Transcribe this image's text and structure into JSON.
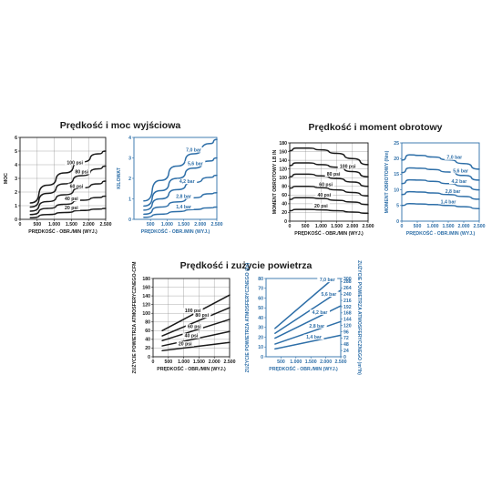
{
  "sections": {
    "speed_power": "Prędkość i moc wyjściowa",
    "speed_torque": "Prędkość i moment obrotowy",
    "speed_air": "Prędkość i zużycie powietrza"
  },
  "colors": {
    "black": "#1a1a1a",
    "blue": "#2e6fa8"
  },
  "chart_data": [
    {
      "id": "power_psi",
      "type": "line",
      "color": "black",
      "xlabel": "PRĘDKOŚĆ - OBR./MIN (WYJ.)",
      "ylabel": "MOC",
      "xlim": [
        0,
        2500
      ],
      "ylim": [
        0,
        6
      ],
      "grid": true,
      "xticks": [
        0,
        500,
        1000,
        1500,
        2000,
        2500
      ],
      "xtick_labels": [
        "0",
        "500",
        "1.000",
        "1.500",
        "2.000",
        "2.500"
      ],
      "yticks": [
        0,
        1,
        2,
        3,
        4,
        5,
        6
      ],
      "ytick_labels": [
        "0",
        "1",
        "2",
        "3",
        "4",
        "5",
        "6"
      ],
      "label_pos": "above",
      "series": [
        {
          "name": "100 psi",
          "x": [
            300,
            800,
            1300,
            1800,
            2300,
            2500
          ],
          "y": [
            1.2,
            2.5,
            3.4,
            4.2,
            4.8,
            5.0
          ],
          "label_at": 1600
        },
        {
          "name": "80 psi",
          "x": [
            300,
            800,
            1300,
            1800,
            2300,
            2500
          ],
          "y": [
            0.9,
            1.9,
            2.6,
            3.2,
            3.7,
            3.9
          ],
          "label_at": 1800
        },
        {
          "name": "60 psi",
          "x": [
            300,
            800,
            1300,
            1800,
            2300,
            2500
          ],
          "y": [
            0.6,
            1.3,
            1.8,
            2.3,
            2.6,
            2.8
          ],
          "label_at": 1650
        },
        {
          "name": "40 psi",
          "x": [
            300,
            800,
            1300,
            1800,
            2300,
            2500
          ],
          "y": [
            0.35,
            0.8,
            1.1,
            1.4,
            1.6,
            1.7
          ],
          "label_at": 1500
        },
        {
          "name": "20 psi",
          "x": [
            300,
            800,
            1300,
            1800,
            2300,
            2500
          ],
          "y": [
            0.12,
            0.35,
            0.5,
            0.65,
            0.75,
            0.8
          ],
          "label_at": 1500
        }
      ]
    },
    {
      "id": "power_bar",
      "type": "line",
      "color": "blue",
      "xlabel": "PRĘDKOŚĆ - OBR./MIN (WYJ.)",
      "ylabel": "KILOWAT",
      "xlim": [
        0,
        2500
      ],
      "ylim": [
        0,
        4
      ],
      "grid": false,
      "xticks": [
        500,
        1000,
        1500,
        2000,
        2500
      ],
      "xtick_labels": [
        "500",
        "1.000",
        "1.500",
        "2.000",
        "2.500"
      ],
      "yticks": [
        0,
        1,
        2,
        3,
        4
      ],
      "ytick_labels": [
        "0",
        "1",
        "2",
        "3",
        "4"
      ],
      "label_pos": "above",
      "series": [
        {
          "name": "7,0 bar",
          "x": [
            300,
            800,
            1300,
            1800,
            2300,
            2500
          ],
          "y": [
            0.9,
            1.9,
            2.6,
            3.2,
            3.7,
            3.9
          ],
          "label_at": 1800
        },
        {
          "name": "5,6 bar",
          "x": [
            300,
            800,
            1300,
            1800,
            2300,
            2500
          ],
          "y": [
            0.65,
            1.4,
            2.0,
            2.5,
            2.85,
            3.0
          ],
          "label_at": 1850
        },
        {
          "name": "4,2 bar",
          "x": [
            300,
            800,
            1300,
            1800,
            2300,
            2500
          ],
          "y": [
            0.45,
            1.0,
            1.45,
            1.8,
            2.05,
            2.15
          ],
          "label_at": 1600
        },
        {
          "name": "2,8 bar",
          "x": [
            300,
            800,
            1300,
            1800,
            2300,
            2500
          ],
          "y": [
            0.25,
            0.6,
            0.85,
            1.05,
            1.25,
            1.3
          ],
          "label_at": 1500
        },
        {
          "name": "1,4 bar",
          "x": [
            300,
            800,
            1300,
            1800,
            2300,
            2500
          ],
          "y": [
            0.1,
            0.25,
            0.38,
            0.48,
            0.56,
            0.6
          ],
          "label_at": 1500
        }
      ]
    },
    {
      "id": "torque_psi",
      "type": "line",
      "color": "black",
      "xlabel": "PRĘDKOŚĆ - OBR./MIN (WYJ.)",
      "ylabel": "MOMENT OBROTOWY LB IN",
      "xlim": [
        0,
        2500
      ],
      "ylim": [
        0,
        180
      ],
      "grid": true,
      "xticks": [
        0,
        500,
        1000,
        1500,
        2000,
        2500
      ],
      "xtick_labels": [
        "0",
        "500",
        "1.000",
        "1.500",
        "2.000",
        "2.500"
      ],
      "yticks": [
        0,
        20,
        40,
        60,
        80,
        100,
        120,
        140,
        160,
        180
      ],
      "ytick_labels": [
        "0",
        "20",
        "40",
        "60",
        "80",
        "100",
        "120",
        "140",
        "160",
        "180"
      ],
      "label_pos": "above",
      "series": [
        {
          "name": "",
          "x": [
            0,
            200,
            600,
            1000,
            1500,
            2000,
            2500
          ],
          "y": [
            162,
            168,
            168,
            164,
            156,
            144,
            130
          ],
          "label_at": null
        },
        {
          "name": "100 psi",
          "x": [
            0,
            200,
            600,
            1000,
            1500,
            2000,
            2500
          ],
          "y": [
            128,
            134,
            134,
            130,
            124,
            114,
            102
          ],
          "label_at": 1850
        },
        {
          "name": "80 psi",
          "x": [
            0,
            200,
            600,
            1000,
            1500,
            2000,
            2500
          ],
          "y": [
            102,
            108,
            108,
            104,
            98,
            90,
            80
          ],
          "label_at": 1400
        },
        {
          "name": "60 psi",
          "x": [
            0,
            200,
            600,
            1000,
            1500,
            2000,
            2500
          ],
          "y": [
            76,
            80,
            80,
            77,
            72,
            66,
            58
          ],
          "label_at": 1150
        },
        {
          "name": "40 psi",
          "x": [
            0,
            200,
            600,
            1000,
            1500,
            2000,
            2500
          ],
          "y": [
            50,
            54,
            54,
            52,
            48,
            44,
            38
          ],
          "label_at": 1100
        },
        {
          "name": "20 psi",
          "x": [
            0,
            200,
            600,
            1000,
            1500,
            2000,
            2500
          ],
          "y": [
            24,
            27,
            27,
            26,
            24,
            21,
            18
          ],
          "label_at": 1000
        }
      ]
    },
    {
      "id": "torque_bar",
      "type": "line",
      "color": "blue",
      "xlabel": "PRĘDKOŚĆ - OBR./MIN (WYJ.)",
      "ylabel": "MOMENT OBROTOWY (Nm)",
      "xlim": [
        0,
        2500
      ],
      "ylim": [
        0,
        25
      ],
      "grid": false,
      "xticks": [
        0,
        500,
        1000,
        1500,
        2000,
        2500
      ],
      "xtick_labels": [
        "0",
        "500",
        "1.000",
        "1.500",
        "2.000",
        "2.500"
      ],
      "yticks": [
        0,
        5,
        10,
        15,
        20,
        25
      ],
      "ytick_labels": [
        "0",
        "5",
        "10",
        "15",
        "20",
        "25"
      ],
      "label_pos": "above",
      "series": [
        {
          "name": "7,0 bar",
          "x": [
            0,
            250,
            600,
            1000,
            1500,
            2000,
            2500
          ],
          "y": [
            19.5,
            21.2,
            21.0,
            20.5,
            19.6,
            18.4,
            16.6
          ],
          "label_at": 1700
        },
        {
          "name": "5,6 bar",
          "x": [
            0,
            250,
            600,
            1000,
            1500,
            2000,
            2500
          ],
          "y": [
            15.5,
            17.0,
            16.9,
            16.5,
            15.7,
            14.6,
            13.1
          ],
          "label_at": 1900
        },
        {
          "name": "4,2 bar",
          "x": [
            0,
            250,
            600,
            1000,
            1500,
            2000,
            2500
          ],
          "y": [
            12.0,
            13.2,
            13.1,
            12.7,
            12.0,
            11.2,
            10.0
          ],
          "label_at": 1850
        },
        {
          "name": "2,8 bar",
          "x": [
            0,
            250,
            600,
            1000,
            1500,
            2000,
            2500
          ],
          "y": [
            8.5,
            9.4,
            9.3,
            9.0,
            8.5,
            7.9,
            7.0
          ],
          "label_at": 1650
        },
        {
          "name": "1,4 bar",
          "x": [
            0,
            250,
            600,
            1000,
            1500,
            2000,
            2500
          ],
          "y": [
            5.0,
            5.6,
            5.5,
            5.3,
            5.0,
            4.6,
            4.0
          ],
          "label_at": 1500
        }
      ]
    },
    {
      "id": "air_psi",
      "type": "line",
      "color": "black",
      "xlabel": "PRĘDKOŚĆ - OBR./MIN (WYJ.)",
      "ylabel": "ZUŻYCIE POWIETRZA ATMOSFERYCZNEGO-CFM",
      "xlim": [
        0,
        2500
      ],
      "ylim": [
        0,
        180
      ],
      "grid": true,
      "xticks": [
        0,
        500,
        1000,
        1500,
        2000,
        2500
      ],
      "xtick_labels": [
        "0",
        "500",
        "1.000",
        "1.500",
        "2.000",
        "2.500"
      ],
      "yticks": [
        0,
        20,
        40,
        60,
        80,
        100,
        120,
        140,
        160,
        180
      ],
      "ytick_labels": [
        "0",
        "20",
        "40",
        "60",
        "80",
        "100",
        "120",
        "140",
        "160",
        "180"
      ],
      "label_pos": "above",
      "series": [
        {
          "name": "100 psi",
          "x": [
            300,
            2500
          ],
          "y": [
            60,
            142
          ],
          "label_at": 1300
        },
        {
          "name": "80 psi",
          "x": [
            300,
            2500
          ],
          "y": [
            48,
            113
          ],
          "label_at": 1600
        },
        {
          "name": "60 psi",
          "x": [
            300,
            2500
          ],
          "y": [
            37,
            86
          ],
          "label_at": 1350
        },
        {
          "name": "40 psi",
          "x": [
            300,
            2500
          ],
          "y": [
            25,
            58
          ],
          "label_at": 1250
        },
        {
          "name": "20 psi",
          "x": [
            300,
            2500
          ],
          "y": [
            14,
            33
          ],
          "label_at": 1050
        }
      ]
    },
    {
      "id": "air_bar",
      "type": "line",
      "color": "blue",
      "xlabel": "PRĘDKOŚĆ - OBR./MIN (WYJ.)",
      "ylabel": "ZUŻYCIE POWIETRZA ATMOSFERYCZNEGO (l/s)",
      "ylabel_right": "ZUŻYCIE POWIETRZA ATMOSFERYCZNEGO (m³/h)",
      "xlim": [
        0,
        2500
      ],
      "ylim": [
        0,
        80
      ],
      "grid": false,
      "xticks": [
        500,
        1000,
        1500,
        2000,
        2500
      ],
      "xtick_labels": [
        "500",
        "1.000",
        "1.500",
        "2.000",
        "2.500"
      ],
      "yticks": [
        0,
        10,
        20,
        30,
        40,
        50,
        60,
        70,
        80
      ],
      "ytick_labels": [
        "0",
        "10",
        "20",
        "30",
        "40",
        "50",
        "60",
        "70",
        "80"
      ],
      "yticks_right": [
        0,
        24,
        48,
        72,
        96,
        120,
        144,
        168,
        192,
        216,
        240,
        264,
        288,
        300
      ],
      "ytick_labels_right": [
        "0",
        "24",
        "48",
        "72",
        "96",
        "120",
        "144",
        "168",
        "192",
        "216",
        "240",
        "264",
        "288",
        "300"
      ],
      "ylim_right": [
        0,
        300
      ],
      "label_pos": "above",
      "series": [
        {
          "name": "7,0 bar",
          "x": [
            300,
            2250
          ],
          "y": [
            29,
            80
          ],
          "label_at": 2050
        },
        {
          "name": "5,6 bar",
          "x": [
            300,
            2500
          ],
          "y": [
            24,
            68
          ],
          "label_at": 2100
        },
        {
          "name": "4,2 bar",
          "x": [
            300,
            2500
          ],
          "y": [
            19,
            52
          ],
          "label_at": 1800
        },
        {
          "name": "2,8 bar",
          "x": [
            300,
            2500
          ],
          "y": [
            13,
            36
          ],
          "label_at": 1700
        },
        {
          "name": "1,4 bar",
          "x": [
            300,
            2500
          ],
          "y": [
            8,
            22
          ],
          "label_at": 1600
        }
      ]
    }
  ]
}
